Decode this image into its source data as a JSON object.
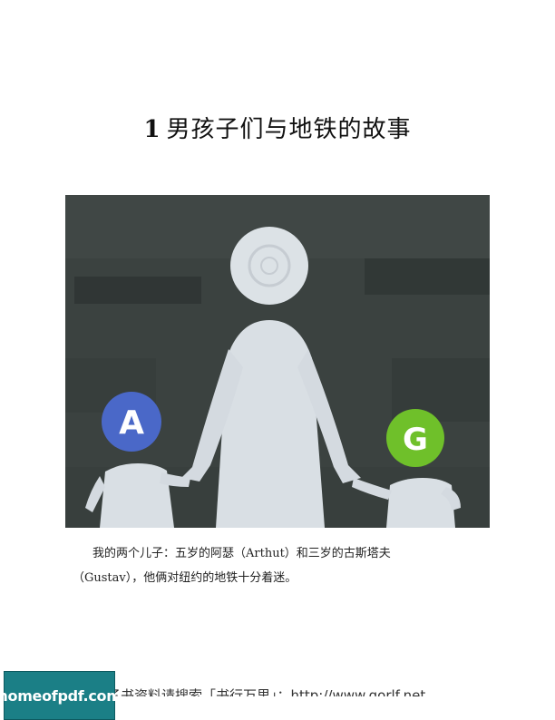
{
  "chapter": {
    "number": "1",
    "title": "男孩子们与地铁的故事"
  },
  "illustration": {
    "badge_left": "A",
    "badge_right": "G",
    "colors": {
      "background": "#3b4240",
      "figure": "#d9dfe4",
      "badge_left": "#4a68c8",
      "badge_right": "#6fc02a"
    }
  },
  "caption": {
    "line1": "我的两个儿子：五岁的阿瑟（Arthut）和三岁的古斯塔夫",
    "line2": "（Gustav），他俩对纽约的地铁十分着迷。"
  },
  "footer": {
    "banner_text": "子书资料请搜索「书行万里」：http://www.gorlf.net",
    "logo_text": "homeofpdf.com"
  }
}
